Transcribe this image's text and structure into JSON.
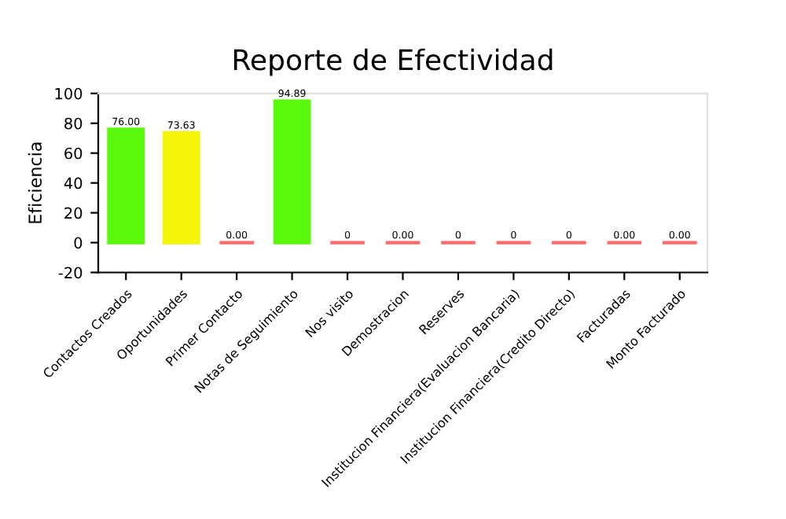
{
  "chart_data": {
    "type": "bar",
    "title": "Reporte de Efectividad",
    "ylabel": "Eficiencia",
    "categories": [
      "Contactos Creados",
      "Oportunidades",
      "Primer Contacto",
      "Notas de Seguimiento",
      "Nos visito",
      "Demostracion",
      "Reserves",
      "Institucion Financiera(Evaluacion Bancaria)",
      "Institucion Financiera(Credito Directo)",
      "Facturadas",
      "Monto Facturado"
    ],
    "values": [
      76,
      73.63,
      0,
      94.89,
      0,
      0,
      0,
      0,
      0,
      0,
      0
    ],
    "colors": [
      "#5af80a",
      "#f5f50a",
      "#ff6b6b",
      "#5af80a",
      "#ff6b6b",
      "#ff6b6b",
      "#ff6b6b",
      "#ff6b6b",
      "#ff6b6b",
      "#ff6b6b",
      "#ff6b6b"
    ],
    "value_labels": [
      "76.00",
      "73.63",
      "0.00",
      "94.89",
      "0",
      "0.00",
      "0",
      "0",
      "0",
      "0.00",
      "0.00"
    ],
    "ylim": [
      -20,
      100
    ],
    "yticks": [
      -20,
      0,
      20,
      40,
      60,
      80,
      100
    ],
    "grid": false
  }
}
